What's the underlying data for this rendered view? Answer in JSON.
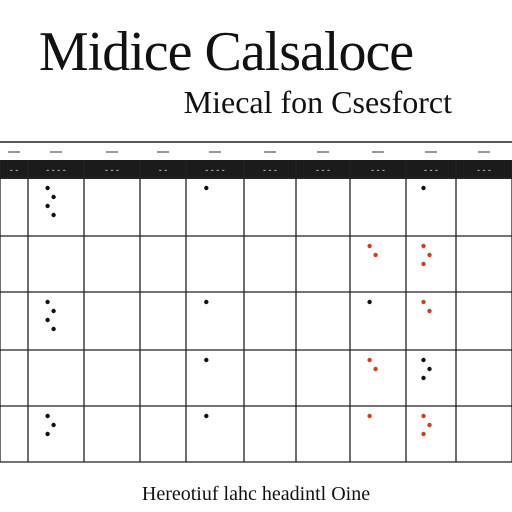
{
  "document": {
    "title": "Midice Calsaloce",
    "subtitle": "Miecal fon Csesforct",
    "footer": "Hereotiuf lahc headintl Oine"
  },
  "calendar": {
    "columns": 10,
    "rows": 5,
    "header_tick_marks": [
      {
        "col": 0,
        "text": "- -"
      },
      {
        "col": 1,
        "text": "- - - -"
      },
      {
        "col": 2,
        "text": "- - -"
      },
      {
        "col": 3,
        "text": "- -"
      },
      {
        "col": 4,
        "text": "- - - -"
      },
      {
        "col": 5,
        "text": "- - -"
      },
      {
        "col": 6,
        "text": "- - -"
      },
      {
        "col": 7,
        "text": "- - -"
      },
      {
        "col": 8,
        "text": "- - -"
      },
      {
        "col": 9,
        "text": "- - -"
      }
    ],
    "cell_dots": [
      {
        "row": 0,
        "col": 1,
        "count": 4,
        "color": "#111111"
      },
      {
        "row": 0,
        "col": 4,
        "count": 1,
        "color": "#111111"
      },
      {
        "row": 0,
        "col": 8,
        "count": 1,
        "color": "#111111"
      },
      {
        "row": 1,
        "col": 7,
        "count": 2,
        "color": "#d93a1c"
      },
      {
        "row": 1,
        "col": 8,
        "count": 3,
        "color": "#d93a1c"
      },
      {
        "row": 2,
        "col": 1,
        "count": 4,
        "color": "#111111"
      },
      {
        "row": 2,
        "col": 4,
        "count": 1,
        "color": "#111111"
      },
      {
        "row": 2,
        "col": 7,
        "count": 1,
        "color": "#111111"
      },
      {
        "row": 2,
        "col": 8,
        "count": 2,
        "color": "#d93a1c"
      },
      {
        "row": 3,
        "col": 4,
        "count": 1,
        "color": "#111111"
      },
      {
        "row": 3,
        "col": 7,
        "count": 2,
        "color": "#d93a1c"
      },
      {
        "row": 3,
        "col": 8,
        "count": 3,
        "color": "#111111"
      },
      {
        "row": 4,
        "col": 1,
        "count": 3,
        "color": "#111111"
      },
      {
        "row": 4,
        "col": 4,
        "count": 1,
        "color": "#111111"
      },
      {
        "row": 4,
        "col": 7,
        "count": 1,
        "color": "#d93a1c"
      },
      {
        "row": 4,
        "col": 8,
        "count": 3,
        "color": "#d93a1c"
      }
    ]
  }
}
